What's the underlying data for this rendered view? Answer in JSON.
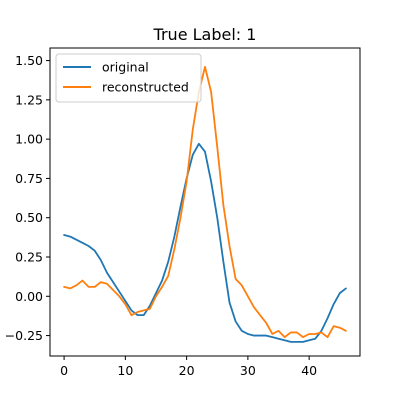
{
  "chart_data": {
    "type": "line",
    "title": "True Label: 1",
    "xlabel": "",
    "ylabel": "",
    "xlim": [
      -2.3,
      48.3
    ],
    "ylim": [
      -0.38,
      1.58
    ],
    "x_ticks": [
      0,
      10,
      20,
      30,
      40
    ],
    "x_tick_labels": [
      "0",
      "10",
      "20",
      "30",
      "40"
    ],
    "y_ticks": [
      -0.25,
      0.0,
      0.25,
      0.5,
      0.75,
      1.0,
      1.25,
      1.5
    ],
    "y_tick_labels": [
      "−0.25",
      "0.00",
      "0.25",
      "0.50",
      "0.75",
      "1.00",
      "1.25",
      "1.50"
    ],
    "grid": false,
    "legend_position": "top-left",
    "x": [
      0,
      1,
      2,
      3,
      4,
      5,
      6,
      7,
      8,
      9,
      10,
      11,
      12,
      13,
      14,
      15,
      16,
      17,
      18,
      19,
      20,
      21,
      22,
      23,
      24,
      25,
      26,
      27,
      28,
      29,
      30,
      31,
      32,
      33,
      34,
      35,
      36,
      37,
      38,
      39,
      40,
      41,
      42,
      43,
      44,
      45,
      46
    ],
    "series": [
      {
        "name": "original",
        "color": "#1f77b4",
        "values": [
          0.39,
          0.38,
          0.36,
          0.34,
          0.32,
          0.29,
          0.23,
          0.15,
          0.09,
          0.03,
          -0.03,
          -0.09,
          -0.12,
          -0.12,
          -0.06,
          0.02,
          0.1,
          0.22,
          0.38,
          0.57,
          0.75,
          0.9,
          0.97,
          0.92,
          0.73,
          0.5,
          0.22,
          -0.04,
          -0.16,
          -0.22,
          -0.24,
          -0.25,
          -0.25,
          -0.25,
          -0.26,
          -0.27,
          -0.28,
          -0.29,
          -0.29,
          -0.29,
          -0.28,
          -0.27,
          -0.22,
          -0.14,
          -0.05,
          0.02,
          0.05
        ]
      },
      {
        "name": "reconstructed",
        "color": "#ff7f0e",
        "values": [
          0.06,
          0.05,
          0.07,
          0.1,
          0.06,
          0.06,
          0.09,
          0.08,
          0.04,
          0.0,
          -0.05,
          -0.12,
          -0.1,
          -0.09,
          -0.08,
          0.0,
          0.06,
          0.13,
          0.3,
          0.5,
          0.73,
          1.06,
          1.3,
          1.46,
          1.3,
          0.95,
          0.58,
          0.32,
          0.11,
          0.07,
          0.0,
          -0.07,
          -0.12,
          -0.17,
          -0.24,
          -0.22,
          -0.26,
          -0.23,
          -0.23,
          -0.26,
          -0.24,
          -0.24,
          -0.23,
          -0.26,
          -0.19,
          -0.2,
          -0.22
        ]
      }
    ]
  }
}
